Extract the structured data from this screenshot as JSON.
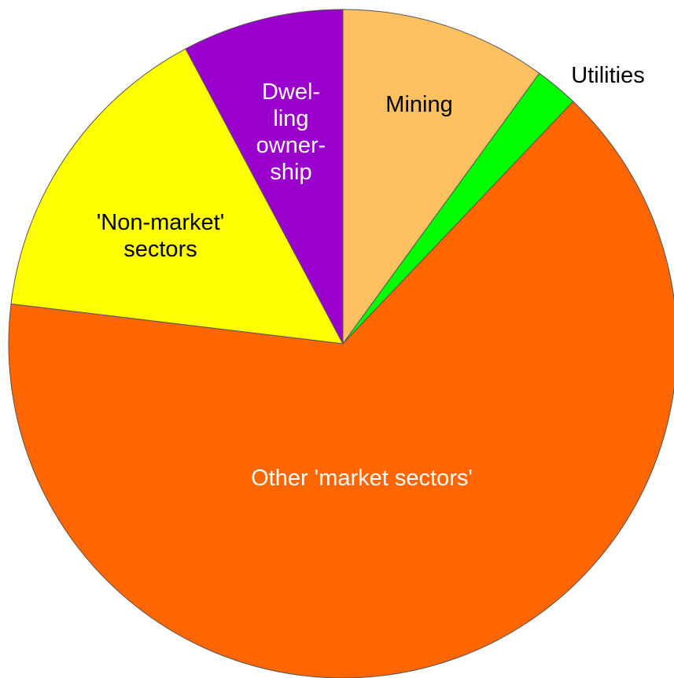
{
  "chart_data": {
    "type": "pie",
    "categories": [
      "Mining",
      "Utilities",
      "Other 'market sectors'",
      "'Non-market'\nsectors",
      "Dwel-\nling\nowner-\nship"
    ],
    "values": [
      10,
      2.1,
      64.8,
      15.3,
      7.8
    ],
    "colors": [
      "#ffc060",
      "#00ff00",
      "#ff6600",
      "#ffff00",
      "#9900cc"
    ],
    "label_colors": [
      "#000000",
      "#000000",
      "#ffffff",
      "#000000",
      "#ffffff"
    ]
  }
}
